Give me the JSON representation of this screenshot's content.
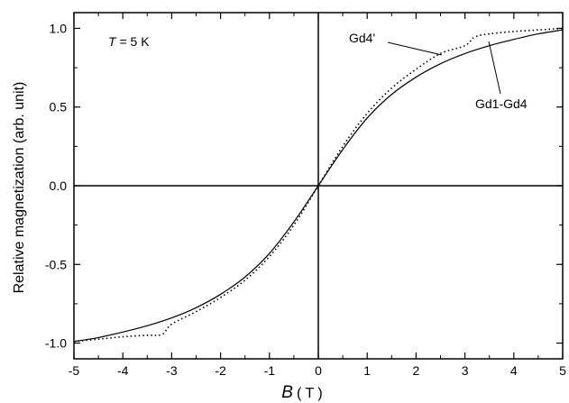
{
  "chart_data": {
    "type": "line",
    "title": "",
    "xlabel_var": "B",
    "xlabel_unit": "( T )",
    "ylabel": "Relative magnetization (arb. unit)",
    "xlim": [
      -5,
      5
    ],
    "ylim": [
      -1.1,
      1.1
    ],
    "x_ticks": [
      "-5",
      "-4",
      "-3",
      "-2",
      "-1",
      "0",
      "1",
      "2",
      "3",
      "4",
      "5"
    ],
    "y_ticks": [
      "-1.0",
      "-0.5",
      "0.0",
      "0.5",
      "1.0"
    ],
    "grid": false,
    "legend": "none",
    "series": [
      {
        "name": "Gd1-Gd4",
        "style": "solid",
        "color": "#000000",
        "x": [
          -5,
          -4.5,
          -4,
          -3.5,
          -3,
          -2.5,
          -2,
          -1.5,
          -1,
          -0.5,
          0,
          0.5,
          1,
          1.5,
          2,
          2.5,
          3,
          3.5,
          4,
          4.5,
          5
        ],
        "y": [
          -0.99,
          -0.965,
          -0.93,
          -0.89,
          -0.84,
          -0.775,
          -0.69,
          -0.58,
          -0.43,
          -0.23,
          0.0,
          0.23,
          0.43,
          0.58,
          0.69,
          0.775,
          0.84,
          0.89,
          0.93,
          0.965,
          0.99
        ]
      },
      {
        "name": "Gd4'",
        "style": "dotted",
        "color": "#000000",
        "x": [
          -5,
          -4.5,
          -4,
          -3.5,
          -3.2,
          -3,
          -2.5,
          -2,
          -1.5,
          -1,
          -0.5,
          0,
          0.5,
          1,
          1.5,
          2,
          2.5,
          3,
          3.2,
          3.5,
          4,
          4.5,
          5
        ],
        "y": [
          -0.99,
          -0.975,
          -0.96,
          -0.95,
          -0.945,
          -0.88,
          -0.8,
          -0.71,
          -0.6,
          -0.45,
          -0.25,
          0.0,
          0.25,
          0.46,
          0.62,
          0.74,
          0.84,
          0.89,
          0.945,
          0.965,
          0.98,
          0.99,
          1.0
        ]
      }
    ],
    "annotations": [
      {
        "text_var": "T",
        "text_rest": " = 5 K"
      },
      {
        "text": "Gd4'"
      },
      {
        "text": "Gd1-Gd4"
      }
    ]
  }
}
